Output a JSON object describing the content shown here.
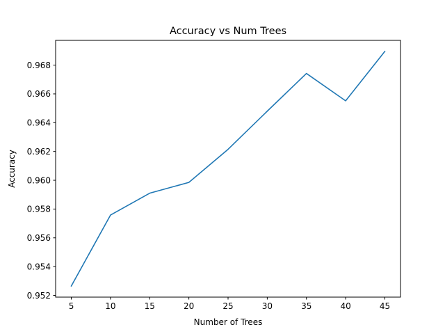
{
  "chart_data": {
    "type": "line",
    "title": "Accuracy vs Num Trees",
    "xlabel": "Number of Trees",
    "ylabel": "Accuracy",
    "x": [
      5,
      10,
      15,
      20,
      25,
      30,
      35,
      40,
      45
    ],
    "series": [
      {
        "values": [
          0.95265,
          0.95758,
          0.9591,
          0.95985,
          0.96215,
          0.9648,
          0.96742,
          0.96552,
          0.96895
        ],
        "color": "#1f77b4"
      }
    ],
    "xlim": [
      3,
      47
    ],
    "ylim": [
      0.95188,
      0.96972
    ],
    "xticks": [
      5,
      10,
      15,
      20,
      25,
      30,
      35,
      40,
      45
    ],
    "yticks": [
      0.952,
      0.954,
      0.956,
      0.958,
      0.96,
      0.962,
      0.964,
      0.966,
      0.968
    ],
    "ytick_labels": [
      "0.952",
      "0.954",
      "0.956",
      "0.958",
      "0.960",
      "0.962",
      "0.964",
      "0.966",
      "0.968"
    ],
    "grid": false,
    "legend": "none"
  }
}
